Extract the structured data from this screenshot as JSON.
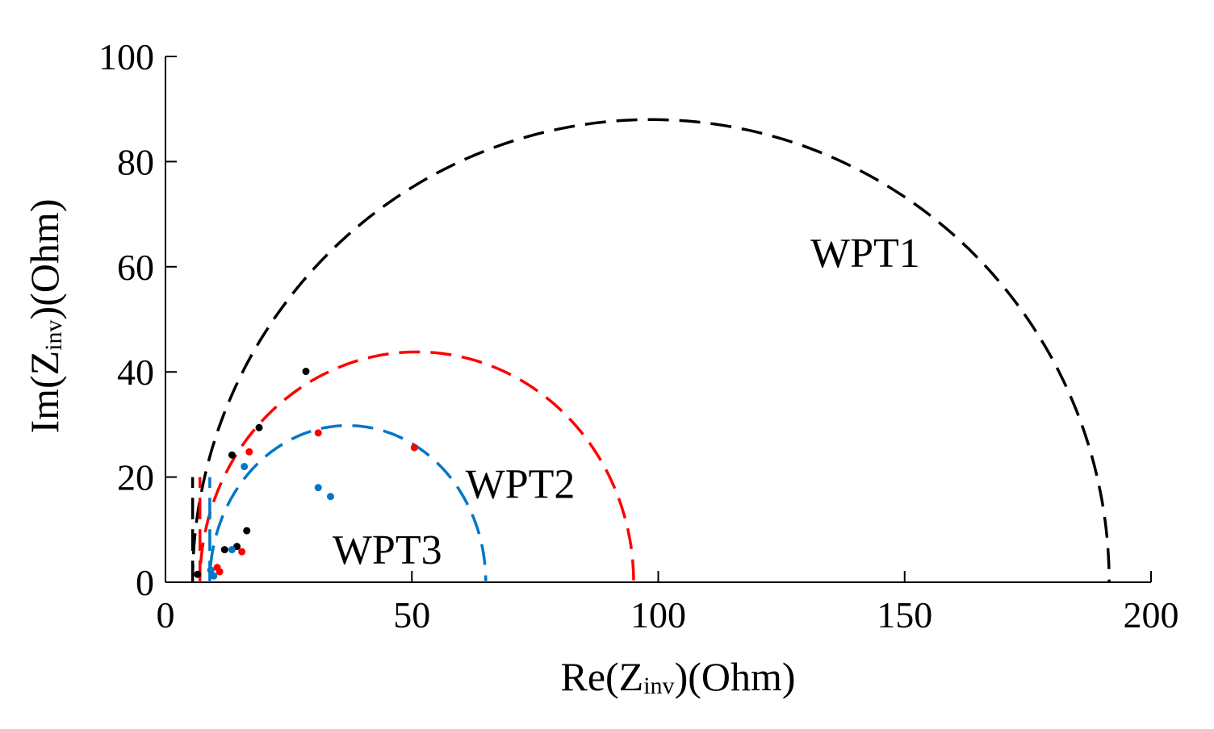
{
  "chart_data": {
    "type": "scatter",
    "title": "",
    "xlabel": {
      "prefix": "Re(Z",
      "sub": "inv",
      "suffix": ")(Ohm)"
    },
    "ylabel": {
      "prefix": "Im(Z",
      "sub": "inv",
      "suffix": ")(Ohm)"
    },
    "xlim": [
      0,
      200
    ],
    "ylim": [
      0,
      100
    ],
    "xticks": [
      0,
      50,
      100,
      150,
      200
    ],
    "yticks": [
      0,
      20,
      40,
      60,
      80,
      100
    ],
    "xtick_labels": [
      "0",
      "50",
      "100",
      "150",
      "200"
    ],
    "ytick_labels": [
      "0",
      "20",
      "40",
      "60",
      "80",
      "100"
    ],
    "grid": false,
    "series": [
      {
        "name": "WPT1",
        "color": "#000000",
        "curve": {
          "x0": 5.5,
          "vertical_to": 20,
          "center": 98.5,
          "radius": 93,
          "height": 88
        },
        "points": [
          [
            6.5,
            1.5
          ],
          [
            12,
            6.2
          ],
          [
            14.5,
            6.8
          ],
          [
            16.5,
            9.8
          ],
          [
            13.5,
            24.2
          ],
          [
            19,
            29.4
          ],
          [
            28.5,
            40.1
          ]
        ]
      },
      {
        "name": "WPT2",
        "color": "#ff0000",
        "curve": {
          "x0": 7,
          "vertical_to": 20,
          "center": 51,
          "radius": 44,
          "height": 43.8
        },
        "points": [
          [
            10.5,
            2.8
          ],
          [
            11,
            2.0
          ],
          [
            15.5,
            5.8
          ],
          [
            17,
            24.8
          ],
          [
            31,
            28.4
          ],
          [
            50.5,
            25.6
          ]
        ]
      },
      {
        "name": "WPT3",
        "color": "#0077c8",
        "curve": {
          "x0": 9,
          "vertical_to": 20,
          "center": 37,
          "radius": 28,
          "height": 29.8
        },
        "points": [
          [
            9.2,
            2.3
          ],
          [
            9.8,
            1.2
          ],
          [
            13.5,
            6.2
          ],
          [
            16,
            22.0
          ],
          [
            31,
            18.0
          ],
          [
            33.5,
            16.3
          ]
        ]
      }
    ],
    "annotations": [
      {
        "text": "WPT1",
        "x": 142,
        "y": 60
      },
      {
        "text": "WPT2",
        "x": 72,
        "y": 16
      },
      {
        "text": "WPT3",
        "x": 45,
        "y": 3.5
      }
    ]
  }
}
